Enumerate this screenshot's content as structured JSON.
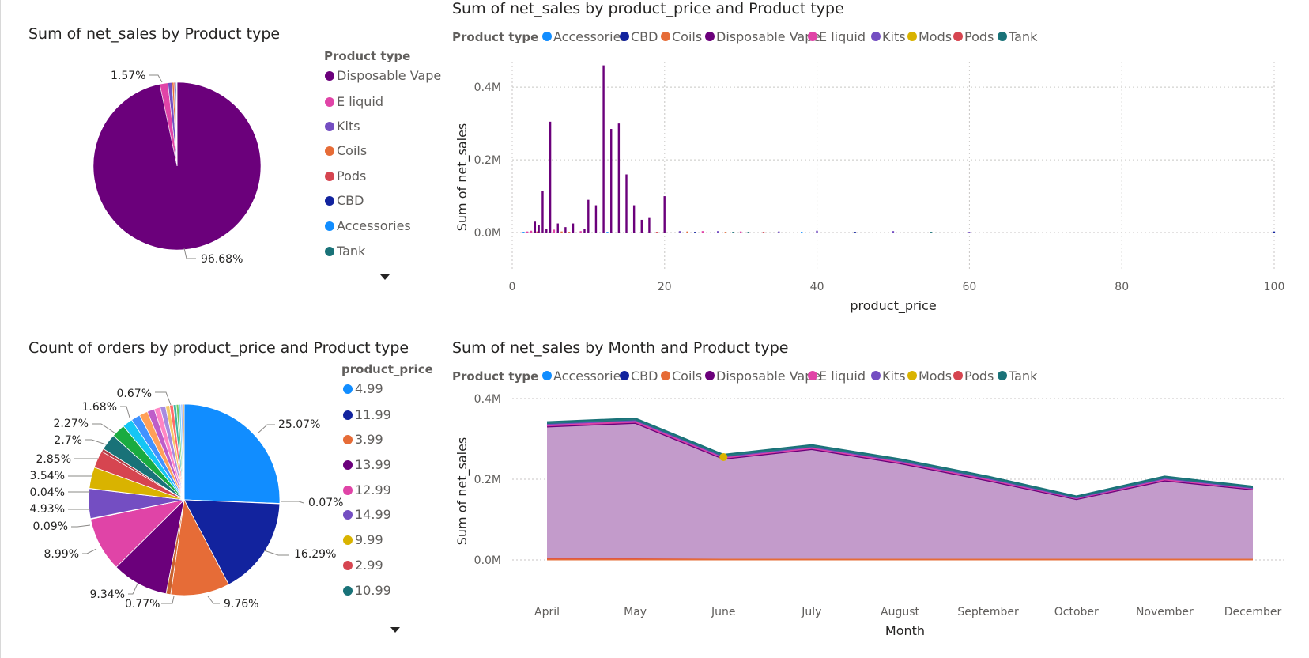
{
  "colors": {
    "Accessories": "#118DFF",
    "CBD": "#12239E",
    "Coils": "#E66C37",
    "Disposable Vape": "#6B007B",
    "E liquid": "#E044A7",
    "Kits": "#744EC2",
    "Mods": "#D9B300",
    "Pods": "#D64550",
    "Tank": "#197278",
    "text": "#252423",
    "subtext": "#605E5C",
    "grid": "#C8C6C4"
  },
  "icons": {
    "legend_more": "caret-down-icon"
  },
  "chart_data": [
    {
      "id": "pie-product-type",
      "type": "pie",
      "title": "Sum of net_sales by Product type",
      "legend_title": "Product type",
      "legend_position": "right",
      "legend_items": [
        "Disposable Vape",
        "E liquid",
        "Kits",
        "Coils",
        "Pods",
        "CBD",
        "Accessories",
        "Tank"
      ],
      "slices": [
        {
          "label": "Disposable Vape",
          "value": 96.68,
          "data_label": "96.68%"
        },
        {
          "label": "E liquid",
          "value": 1.57,
          "data_label": "1.57%"
        },
        {
          "label": "Kits",
          "value": 0.8,
          "data_label": ""
        },
        {
          "label": "Coils",
          "value": 0.35,
          "data_label": ""
        },
        {
          "label": "Pods",
          "value": 0.22,
          "data_label": ""
        },
        {
          "label": "CBD",
          "value": 0.18,
          "data_label": ""
        },
        {
          "label": "Accessories",
          "value": 0.12,
          "data_label": ""
        },
        {
          "label": "Tank",
          "value": 0.08,
          "data_label": ""
        }
      ]
    },
    {
      "id": "bar-price",
      "type": "bar",
      "title": "Sum of net_sales by product_price and Product type",
      "legend_title": "Product type",
      "legend_position": "top-left",
      "legend_items": [
        "Accessories",
        "CBD",
        "Coils",
        "Disposable Vape",
        "E liquid",
        "Kits",
        "Mods",
        "Pods",
        "Tank"
      ],
      "xlabel": "product_price",
      "ylabel": "Sum of net_sales",
      "xlim": [
        0,
        100
      ],
      "ylim": [
        -0.1,
        0.47
      ],
      "xticks": [
        {
          "v": 0,
          "t": "0"
        },
        {
          "v": 20,
          "t": "20"
        },
        {
          "v": 40,
          "t": "40"
        },
        {
          "v": 60,
          "t": "60"
        },
        {
          "v": 80,
          "t": "80"
        },
        {
          "v": 100,
          "t": "100"
        }
      ],
      "yticks": [
        {
          "v": 0,
          "t": "0.0M"
        },
        {
          "v": 0.2,
          "t": "0.2M"
        },
        {
          "v": 0.4,
          "t": "0.4M"
        }
      ],
      "grid": true,
      "unit": "millions",
      "series": [
        {
          "name": "Disposable Vape",
          "points": [
            [
              2.99,
              0.03
            ],
            [
              3.49,
              0.02
            ],
            [
              3.99,
              0.115
            ],
            [
              4.49,
              0.01
            ],
            [
              4.99,
              0.305
            ],
            [
              5.99,
              0.025
            ],
            [
              6.99,
              0.015
            ],
            [
              7.99,
              0.025
            ],
            [
              9.49,
              0.01
            ],
            [
              9.99,
              0.09
            ],
            [
              10.99,
              0.075
            ],
            [
              11.99,
              0.46
            ],
            [
              12.99,
              0.285
            ],
            [
              13.99,
              0.3
            ],
            [
              14.99,
              0.16
            ],
            [
              15.99,
              0.075
            ],
            [
              16.99,
              0.035
            ],
            [
              17.99,
              0.04
            ],
            [
              19.99,
              0.1
            ]
          ]
        },
        {
          "name": "E liquid",
          "points": [
            [
              1.99,
              0.003
            ],
            [
              2.49,
              0.005
            ],
            [
              5.49,
              0.008
            ],
            [
              8.99,
              0.004
            ],
            [
              24.99,
              0.004
            ],
            [
              29.99,
              0.003
            ]
          ]
        },
        {
          "name": "Kits",
          "points": [
            [
              21.99,
              0.004
            ],
            [
              26.99,
              0.004
            ],
            [
              34.99,
              0.003
            ],
            [
              39.99,
              0.005
            ],
            [
              49.99,
              0.004
            ],
            [
              59.99,
              0.002
            ]
          ]
        },
        {
          "name": "Coils",
          "points": [
            [
              6.49,
              0.003
            ],
            [
              7.49,
              0.002
            ],
            [
              22.99,
              0.003
            ],
            [
              27.99,
              0.002
            ]
          ]
        },
        {
          "name": "Pods",
          "points": [
            [
              3.29,
              0.003
            ],
            [
              18.99,
              0.002
            ],
            [
              32.99,
              0.002
            ]
          ]
        },
        {
          "name": "CBD",
          "points": [
            [
              23.99,
              0.002
            ],
            [
              44.99,
              0.002
            ],
            [
              99.99,
              0.003
            ]
          ]
        },
        {
          "name": "Accessories",
          "points": [
            [
              1.49,
              0.002
            ],
            [
              12.49,
              0.002
            ],
            [
              37.99,
              0.002
            ]
          ]
        },
        {
          "name": "Tank",
          "points": [
            [
              28.99,
              0.002
            ],
            [
              30.99,
              0.002
            ],
            [
              54.99,
              0.002
            ]
          ]
        }
      ]
    },
    {
      "id": "pie-orders",
      "type": "pie",
      "title": "Count of orders by product_price and Product type",
      "legend_title": "product_price",
      "legend_position": "right",
      "legend_items": [
        {
          "label": "4.99",
          "color": "#118DFF"
        },
        {
          "label": "11.99",
          "color": "#12239E"
        },
        {
          "label": "3.99",
          "color": "#E66C37"
        },
        {
          "label": "13.99",
          "color": "#6B007B"
        },
        {
          "label": "12.99",
          "color": "#E044A7"
        },
        {
          "label": "14.99",
          "color": "#744EC2"
        },
        {
          "label": "9.99",
          "color": "#D9B300"
        },
        {
          "label": "2.99",
          "color": "#D64550"
        },
        {
          "label": "10.99",
          "color": "#197278"
        }
      ],
      "slices": [
        {
          "value": 25.07,
          "color": "#118DFF",
          "data_label": "25.07%"
        },
        {
          "value": 0.07,
          "color": "#0E7FE8",
          "data_label": "0.07%"
        },
        {
          "value": 16.29,
          "color": "#12239E",
          "data_label": "16.29%"
        },
        {
          "value": 9.76,
          "color": "#E66C37",
          "data_label": "9.76%"
        },
        {
          "value": 0.77,
          "color": "#C9622F",
          "data_label": "0.77%"
        },
        {
          "value": 9.34,
          "color": "#6B007B",
          "data_label": "9.34%"
        },
        {
          "value": 8.99,
          "color": "#E044A7",
          "data_label": "8.99%"
        },
        {
          "value": 0.09,
          "color": "#B83A8A",
          "data_label": "0.09%"
        },
        {
          "value": 4.93,
          "color": "#744EC2",
          "data_label": "4.93%"
        },
        {
          "value": 0.04,
          "color": "#5E3FA0",
          "data_label": "0.04%"
        },
        {
          "value": 3.54,
          "color": "#D9B300",
          "data_label": "3.54%"
        },
        {
          "value": 2.85,
          "color": "#D64550",
          "data_label": "2.85%"
        },
        {
          "value": 0.5,
          "color": "#B03A43",
          "data_label": ""
        },
        {
          "value": 2.7,
          "color": "#197278",
          "data_label": "2.7%"
        },
        {
          "value": 2.27,
          "color": "#1AAB40",
          "data_label": "2.27%"
        },
        {
          "value": 1.68,
          "color": "#15C6F4",
          "data_label": "1.68%"
        },
        {
          "value": 1.5,
          "color": "#4092FF",
          "data_label": ""
        },
        {
          "value": 1.4,
          "color": "#FFA058",
          "data_label": ""
        },
        {
          "value": 1.2,
          "color": "#BE5DC9",
          "data_label": ""
        },
        {
          "value": 1.0,
          "color": "#FF85C4",
          "data_label": ""
        },
        {
          "value": 0.9,
          "color": "#A78BE0",
          "data_label": ""
        },
        {
          "value": 0.67,
          "color": "#F5C869",
          "data_label": "0.67%"
        },
        {
          "value": 0.6,
          "color": "#FF6B6B",
          "data_label": ""
        },
        {
          "value": 0.5,
          "color": "#40B4A3",
          "data_label": ""
        },
        {
          "value": 0.4,
          "color": "#6ECB63",
          "data_label": ""
        },
        {
          "value": 0.35,
          "color": "#7FD4F0",
          "data_label": ""
        },
        {
          "value": 0.3,
          "color": "#9FB8FF",
          "data_label": ""
        },
        {
          "value": 0.25,
          "color": "#E0A04A",
          "data_label": ""
        }
      ]
    },
    {
      "id": "area-month",
      "type": "area",
      "title": "Sum of net_sales by Month and Product type",
      "legend_title": "Product type",
      "legend_position": "top-left",
      "legend_items": [
        "Accessories",
        "CBD",
        "Coils",
        "Disposable Vape",
        "E liquid",
        "Kits",
        "Mods",
        "Pods",
        "Tank"
      ],
      "xlabel": "Month",
      "ylabel": "Sum of net_sales",
      "categories": [
        "April",
        "May",
        "June",
        "July",
        "August",
        "September",
        "October",
        "November",
        "December"
      ],
      "ylim": [
        0,
        0.4
      ],
      "yticks": [
        {
          "v": 0,
          "t": "0.0M"
        },
        {
          "v": 0.2,
          "t": "0.2M"
        },
        {
          "v": 0.4,
          "t": "0.4M"
        }
      ],
      "grid": true,
      "unit": "millions",
      "series": [
        {
          "name": "Disposable Vape",
          "values": [
            0.327,
            0.336,
            0.248,
            0.272,
            0.237,
            0.194,
            0.148,
            0.194,
            0.172
          ]
        },
        {
          "name": "E liquid",
          "values": [
            0.004,
            0.004,
            0.003,
            0.003,
            0.003,
            0.003,
            0.002,
            0.003,
            0.002
          ]
        },
        {
          "name": "Kits",
          "values": [
            0.002,
            0.002,
            0.002,
            0.002,
            0.002,
            0.002,
            0.001,
            0.002,
            0.001
          ]
        },
        {
          "name": "Mods",
          "values": [
            0.0,
            0.0,
            0.002,
            0.0,
            0.0,
            0.0,
            0.0,
            0.0,
            0.0
          ]
        },
        {
          "name": "Pods",
          "values": [
            0.001,
            0.001,
            0.001,
            0.001,
            0.001,
            0.001,
            0.001,
            0.001,
            0.001
          ]
        },
        {
          "name": "Tank",
          "values": [
            0.005,
            0.005,
            0.005,
            0.005,
            0.005,
            0.005,
            0.004,
            0.005,
            0.004
          ]
        },
        {
          "name": "Coils",
          "values": [
            0.003,
            0.003,
            0.002,
            0.002,
            0.002,
            0.002,
            0.002,
            0.002,
            0.002
          ]
        }
      ],
      "highlight_point": {
        "series": "Mods",
        "category": "June",
        "value": 0.255
      }
    }
  ]
}
